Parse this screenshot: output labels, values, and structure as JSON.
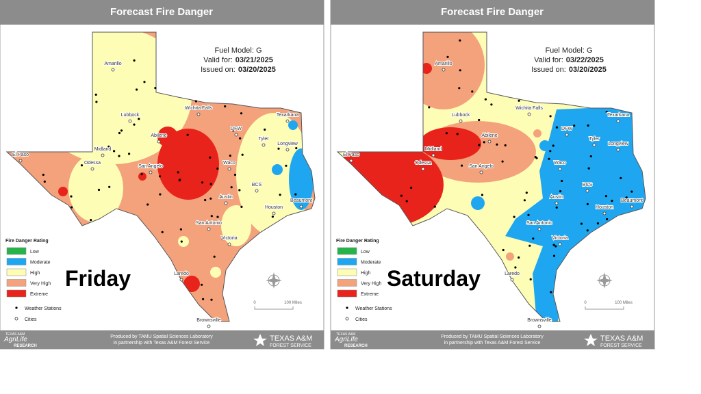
{
  "panels": [
    {
      "title": "Forecast Fire Danger",
      "fuel_model": "Fuel Model: G",
      "valid_label": "Valid for:",
      "valid_date": "03/21/2025",
      "issued_label": "Issued on:",
      "issued_date": "03/20/2025",
      "day": "Friday",
      "cities": [
        "Amarillo",
        "Lubbock",
        "Wichita Falls",
        "DFW",
        "Texarkana",
        "Tyler",
        "Longview",
        "El Paso",
        "Midland",
        "Odessa",
        "Abilene",
        "San Angelo",
        "Waco",
        "BCS",
        "Austin",
        "Beaumont",
        "Houston",
        "San Antonio",
        "Victoria",
        "Laredo",
        "Brownsville"
      ],
      "legend": {
        "title": "Fire Danger Rating",
        "items": [
          "Low",
          "Moderate",
          "High",
          "Very High",
          "Extreme"
        ],
        "stations": "Weather Stations",
        "cities": "Cities"
      },
      "scale": {
        "start": "0",
        "end": "100 Miles"
      },
      "footer": {
        "line1": "Produced by TAMU Spatial Sciences Laboratory",
        "line2": "in partnership with Texas A&M Forest Service"
      },
      "logo_left": {
        "top": "TEXAS A&M",
        "main": "AgriLife",
        "bottom": "RESEARCH"
      },
      "logo_right": {
        "main": "TEXAS A&M",
        "sub": "FOREST SERVICE"
      }
    },
    {
      "title": "Forecast Fire Danger",
      "fuel_model": "Fuel Model: G",
      "valid_label": "Valid for:",
      "valid_date": "03/22/2025",
      "issued_label": "Issued on:",
      "issued_date": "03/20/2025",
      "day": "Saturday",
      "cities": [
        "Amarillo",
        "Lubbock",
        "Wichita Falls",
        "DFW",
        "Texarkana",
        "Tyler",
        "Longview",
        "El Paso",
        "Midland",
        "Odessa",
        "Abilene",
        "San Angelo",
        "Waco",
        "BCS",
        "Austin",
        "Beaumont",
        "Houston",
        "San Antonio",
        "Victoria",
        "Laredo",
        "Brownsville"
      ],
      "legend": {
        "title": "Fire Danger Rating",
        "items": [
          "Low",
          "Moderate",
          "High",
          "Very High",
          "Extreme"
        ],
        "stations": "Weather Stations",
        "cities": "Cities"
      },
      "scale": {
        "start": "0",
        "end": "100 Miles"
      },
      "footer": {
        "line1": "Produced by TAMU Spatial Sciences Laboratory",
        "line2": "in partnership with Texas A&M Forest Service"
      },
      "logo_left": {
        "top": "TEXAS A&M",
        "main": "AgriLife",
        "bottom": "RESEARCH"
      },
      "logo_right": {
        "main": "TEXAS A&M",
        "sub": "FOREST SERVICE"
      }
    }
  ]
}
